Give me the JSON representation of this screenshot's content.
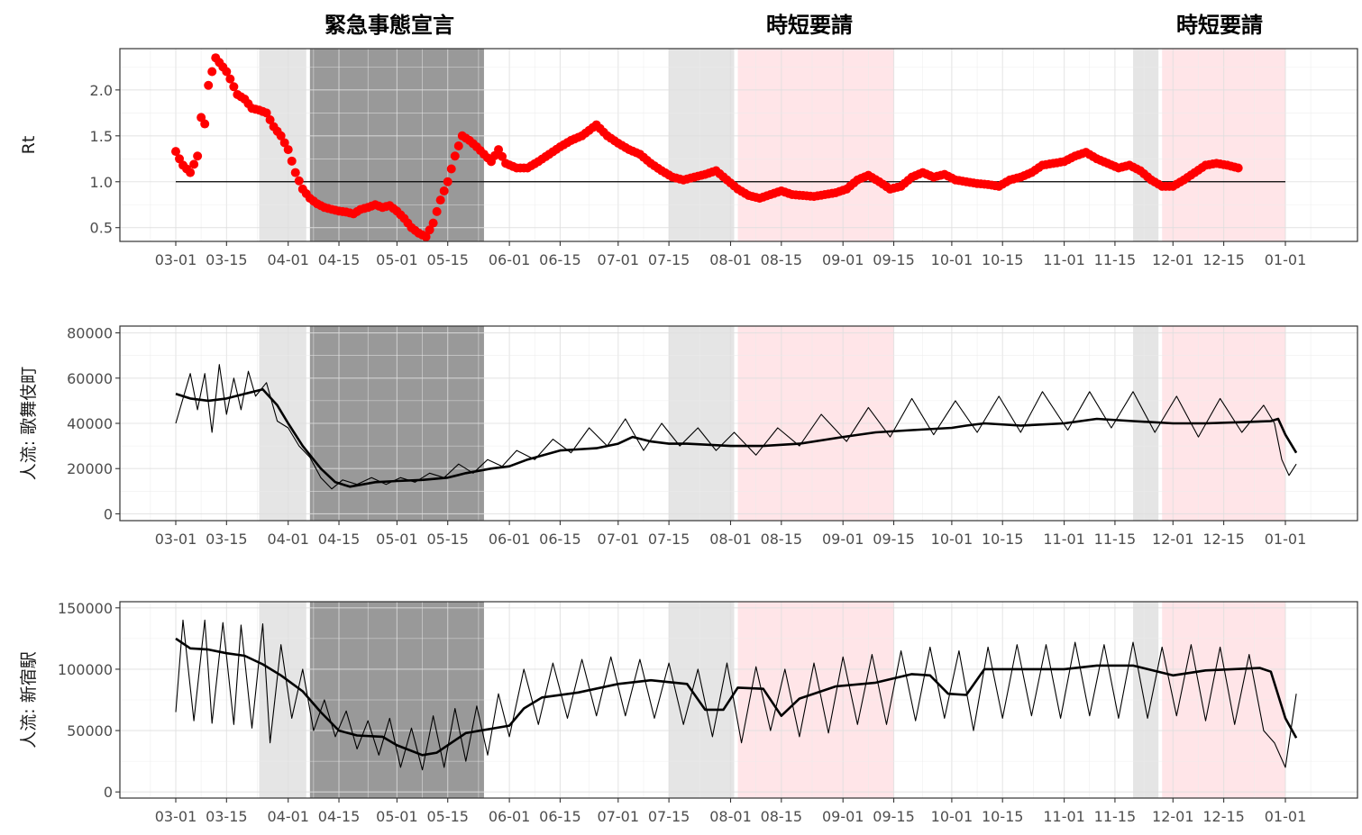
{
  "chart_data": [
    {
      "type": "scatter",
      "ylabel": "Rt",
      "ylim": [
        0.35,
        2.45
      ],
      "y_ticks": [
        0.5,
        1.0,
        1.5,
        2.0
      ],
      "y_tick_labels": [
        "0.5",
        "1.0",
        "1.5",
        "2.0"
      ],
      "x_tick_labels": [
        "03-01",
        "03-15",
        "04-01",
        "04-15",
        "05-01",
        "05-15",
        "06-01",
        "06-15",
        "07-01",
        "07-15",
        "08-01",
        "08-15",
        "09-01",
        "09-15",
        "10-01",
        "10-15",
        "11-01",
        "11-15",
        "12-01",
        "12-15",
        "01-01"
      ],
      "reference_line": 1.0,
      "point_color": "#ff0000",
      "series": [
        {
          "x": [
            "03-01",
            "03-02",
            "03-03",
            "03-05",
            "03-07",
            "03-08",
            "03-09",
            "03-10",
            "03-11",
            "03-12",
            "03-13",
            "03-14",
            "03-15",
            "03-16",
            "03-18",
            "03-20",
            "03-22",
            "03-24",
            "03-26",
            "03-28",
            "03-30",
            "04-01",
            "04-03",
            "04-05",
            "04-07",
            "04-09",
            "04-11",
            "04-13",
            "04-15",
            "04-17",
            "04-19",
            "04-21",
            "04-23",
            "04-25",
            "04-27",
            "04-29",
            "05-01",
            "05-03",
            "05-05",
            "05-07",
            "05-09",
            "05-11",
            "05-13",
            "05-15",
            "05-17",
            "05-19",
            "05-21",
            "05-23",
            "05-25",
            "05-27",
            "05-29",
            "05-31",
            "06-03",
            "06-06",
            "06-09",
            "06-12",
            "06-15",
            "06-18",
            "06-21",
            "06-25",
            "06-28",
            "07-01",
            "07-04",
            "07-07",
            "07-10",
            "07-13",
            "07-16",
            "07-19",
            "07-22",
            "07-25",
            "07-28",
            "07-31",
            "08-03",
            "08-06",
            "08-09",
            "08-12",
            "08-15",
            "08-18",
            "08-21",
            "08-24",
            "08-27",
            "08-30",
            "09-02",
            "09-05",
            "09-08",
            "09-11",
            "09-14",
            "09-17",
            "09-20",
            "09-23",
            "09-26",
            "09-29",
            "10-02",
            "10-05",
            "10-08",
            "10-11",
            "10-14",
            "10-17",
            "10-20",
            "10-23",
            "10-26",
            "10-29",
            "11-01",
            "11-04",
            "11-07",
            "11-10",
            "11-13",
            "11-16",
            "11-19",
            "11-22",
            "11-25",
            "11-28",
            "12-01",
            "12-04",
            "12-07",
            "12-10",
            "12-13",
            "12-16",
            "12-19"
          ],
          "y": [
            1.33,
            1.25,
            1.18,
            1.1,
            1.28,
            1.7,
            1.63,
            2.05,
            2.2,
            2.35,
            2.3,
            2.25,
            2.2,
            2.12,
            1.95,
            1.9,
            1.8,
            1.78,
            1.75,
            1.6,
            1.5,
            1.35,
            1.1,
            0.92,
            0.82,
            0.76,
            0.72,
            0.7,
            0.68,
            0.67,
            0.65,
            0.7,
            0.72,
            0.75,
            0.72,
            0.74,
            0.68,
            0.6,
            0.5,
            0.44,
            0.4,
            0.55,
            0.8,
            1.0,
            1.28,
            1.5,
            1.45,
            1.38,
            1.3,
            1.22,
            1.35,
            1.2,
            1.15,
            1.15,
            1.22,
            1.3,
            1.38,
            1.45,
            1.5,
            1.62,
            1.5,
            1.42,
            1.35,
            1.3,
            1.2,
            1.12,
            1.05,
            1.02,
            1.05,
            1.08,
            1.12,
            1.02,
            0.92,
            0.85,
            0.82,
            0.86,
            0.9,
            0.86,
            0.85,
            0.84,
            0.86,
            0.88,
            0.92,
            1.02,
            1.07,
            1.0,
            0.92,
            0.95,
            1.05,
            1.1,
            1.05,
            1.08,
            1.02,
            1.0,
            0.98,
            0.97,
            0.95,
            1.02,
            1.05,
            1.1,
            1.18,
            1.2,
            1.22,
            1.28,
            1.32,
            1.25,
            1.2,
            1.15,
            1.18,
            1.12,
            1.02,
            0.95,
            0.95,
            1.02,
            1.1,
            1.18,
            1.2,
            1.18,
            1.15
          ]
        }
      ]
    },
    {
      "type": "line",
      "ylabel": "人流: 歌舞伎町",
      "ylim": [
        -3000,
        83000
      ],
      "y_ticks": [
        0,
        20000,
        40000,
        60000,
        80000
      ],
      "y_tick_labels": [
        "0",
        "20000",
        "40000",
        "60000",
        "80000"
      ],
      "x_tick_labels": [
        "03-01",
        "03-15",
        "04-01",
        "04-15",
        "05-01",
        "05-15",
        "06-01",
        "06-15",
        "07-01",
        "07-15",
        "08-01",
        "08-15",
        "09-01",
        "09-15",
        "10-01",
        "10-15",
        "11-01",
        "11-15",
        "12-01",
        "12-15",
        "01-01"
      ],
      "series": [
        {
          "kind": "smoothed",
          "x": [
            "03-01",
            "03-05",
            "03-10",
            "03-15",
            "03-20",
            "03-25",
            "03-29",
            "04-01",
            "04-05",
            "04-10",
            "04-14",
            "04-18",
            "04-25",
            "05-01",
            "05-08",
            "05-15",
            "05-20",
            "05-27",
            "06-01",
            "06-06",
            "06-15",
            "06-25",
            "07-01",
            "07-05",
            "07-10",
            "07-15",
            "07-20",
            "08-01",
            "08-10",
            "08-20",
            "09-01",
            "09-10",
            "09-20",
            "10-01",
            "10-05",
            "10-10",
            "10-20",
            "11-01",
            "11-10",
            "11-20",
            "12-01",
            "12-10",
            "12-20",
            "12-28",
            "12-30",
            "01-01",
            "01-04"
          ],
          "y": [
            53000,
            51000,
            50000,
            51000,
            53000,
            55000,
            48000,
            40000,
            30000,
            20000,
            14000,
            12000,
            14000,
            14500,
            15000,
            16000,
            18000,
            20000,
            21000,
            24000,
            28000,
            29000,
            31000,
            34000,
            32000,
            31000,
            31000,
            30000,
            30000,
            31000,
            34000,
            36000,
            37000,
            38000,
            39000,
            40000,
            39000,
            40000,
            42000,
            41000,
            40000,
            40000,
            40500,
            41000,
            42000,
            35000,
            27000
          ]
        },
        {
          "kind": "daily",
          "x": [
            "03-01",
            "03-05",
            "03-07",
            "03-09",
            "03-11",
            "03-13",
            "03-15",
            "03-17",
            "03-19",
            "03-21",
            "03-23",
            "03-26",
            "03-29",
            "04-01",
            "04-04",
            "04-07",
            "04-10",
            "04-13",
            "04-16",
            "04-20",
            "04-24",
            "04-28",
            "05-02",
            "05-06",
            "05-10",
            "05-14",
            "05-18",
            "05-22",
            "05-26",
            "05-30",
            "06-03",
            "06-08",
            "06-13",
            "06-18",
            "06-23",
            "06-28",
            "07-03",
            "07-08",
            "07-13",
            "07-18",
            "07-23",
            "07-28",
            "08-02",
            "08-08",
            "08-14",
            "08-20",
            "08-26",
            "09-02",
            "09-08",
            "09-14",
            "09-20",
            "09-26",
            "10-02",
            "10-08",
            "10-14",
            "10-20",
            "10-26",
            "11-02",
            "11-08",
            "11-14",
            "11-20",
            "11-26",
            "12-02",
            "12-08",
            "12-14",
            "12-20",
            "12-26",
            "12-29",
            "12-31",
            "01-02",
            "01-04"
          ],
          "y": [
            40000,
            62000,
            46000,
            62000,
            36000,
            66000,
            44000,
            60000,
            46000,
            63000,
            52000,
            58000,
            41000,
            38000,
            30000,
            25000,
            16000,
            11000,
            15000,
            13000,
            16000,
            13000,
            16000,
            14000,
            18000,
            16000,
            22000,
            18000,
            24000,
            21000,
            28000,
            24000,
            33000,
            27000,
            38000,
            30000,
            42000,
            28000,
            40000,
            30000,
            38000,
            28000,
            36000,
            26000,
            38000,
            30000,
            44000,
            32000,
            47000,
            34000,
            51000,
            35000,
            50000,
            36000,
            52000,
            36000,
            54000,
            37000,
            54000,
            38000,
            54000,
            36000,
            52000,
            34000,
            51000,
            36000,
            48000,
            40000,
            24000,
            17000,
            22000
          ]
        }
      ]
    },
    {
      "type": "line",
      "ylabel": "人流: 新宿駅",
      "ylim": [
        -5000,
        155000
      ],
      "y_ticks": [
        0,
        50000,
        100000,
        150000
      ],
      "y_tick_labels": [
        "0",
        "50000",
        "100000",
        "150000"
      ],
      "x_tick_labels": [
        "03-01",
        "03-15",
        "04-01",
        "04-15",
        "05-01",
        "05-15",
        "06-01",
        "06-15",
        "07-01",
        "07-15",
        "08-01",
        "08-15",
        "09-01",
        "09-15",
        "10-01",
        "10-15",
        "11-01",
        "11-15",
        "12-01",
        "12-15",
        "01-01"
      ],
      "series": [
        {
          "kind": "smoothed",
          "x": [
            "03-01",
            "03-05",
            "03-10",
            "03-15",
            "03-20",
            "03-25",
            "03-30",
            "04-05",
            "04-10",
            "04-15",
            "04-20",
            "04-27",
            "05-01",
            "05-08",
            "05-12",
            "05-20",
            "06-01",
            "06-05",
            "06-10",
            "06-20",
            "07-01",
            "07-10",
            "07-20",
            "07-25",
            "07-30",
            "08-03",
            "08-10",
            "08-15",
            "08-20",
            "08-30",
            "09-10",
            "09-20",
            "09-25",
            "09-30",
            "10-05",
            "10-10",
            "10-20",
            "11-01",
            "11-10",
            "11-20",
            "12-01",
            "12-10",
            "12-25",
            "12-28",
            "01-01",
            "01-04"
          ],
          "y": [
            125000,
            117000,
            116000,
            113000,
            111000,
            104000,
            95000,
            82000,
            65000,
            50000,
            46000,
            45000,
            38000,
            30000,
            32000,
            48000,
            54000,
            68000,
            77000,
            81000,
            88000,
            91000,
            88000,
            67000,
            67000,
            85000,
            84000,
            62000,
            76000,
            86000,
            89000,
            96000,
            95000,
            80000,
            79000,
            100000,
            100000,
            100000,
            103000,
            103000,
            95000,
            99000,
            101000,
            98000,
            60000,
            44000
          ]
        },
        {
          "kind": "daily",
          "x": [
            "03-01",
            "03-03",
            "03-06",
            "03-09",
            "03-11",
            "03-14",
            "03-17",
            "03-19",
            "03-22",
            "03-25",
            "03-27",
            "03-30",
            "04-02",
            "04-05",
            "04-08",
            "04-11",
            "04-14",
            "04-17",
            "04-20",
            "04-23",
            "04-26",
            "04-29",
            "05-02",
            "05-05",
            "05-08",
            "05-11",
            "05-14",
            "05-17",
            "05-20",
            "05-23",
            "05-26",
            "05-29",
            "06-01",
            "06-05",
            "06-09",
            "06-13",
            "06-17",
            "06-21",
            "06-25",
            "06-29",
            "07-03",
            "07-07",
            "07-11",
            "07-15",
            "07-19",
            "07-23",
            "07-27",
            "07-31",
            "08-04",
            "08-08",
            "08-12",
            "08-16",
            "08-20",
            "08-24",
            "08-28",
            "09-01",
            "09-05",
            "09-09",
            "09-13",
            "09-17",
            "09-21",
            "09-25",
            "09-29",
            "10-03",
            "10-07",
            "10-11",
            "10-15",
            "10-19",
            "10-23",
            "10-27",
            "10-31",
            "11-04",
            "11-08",
            "11-12",
            "11-16",
            "11-20",
            "11-24",
            "11-28",
            "12-02",
            "12-06",
            "12-10",
            "12-14",
            "12-18",
            "12-22",
            "12-26",
            "12-29",
            "01-01",
            "01-04"
          ],
          "y": [
            65000,
            140000,
            58000,
            140000,
            56000,
            138000,
            55000,
            136000,
            52000,
            137000,
            40000,
            120000,
            60000,
            100000,
            50000,
            75000,
            45000,
            66000,
            35000,
            58000,
            30000,
            60000,
            20000,
            52000,
            18000,
            62000,
            20000,
            68000,
            25000,
            70000,
            30000,
            80000,
            45000,
            100000,
            55000,
            105000,
            60000,
            108000,
            62000,
            110000,
            62000,
            108000,
            60000,
            105000,
            55000,
            100000,
            45000,
            105000,
            40000,
            102000,
            50000,
            100000,
            45000,
            105000,
            48000,
            110000,
            55000,
            112000,
            55000,
            115000,
            58000,
            118000,
            60000,
            115000,
            50000,
            118000,
            60000,
            120000,
            62000,
            120000,
            60000,
            122000,
            62000,
            120000,
            60000,
            122000,
            60000,
            118000,
            62000,
            120000,
            58000,
            118000,
            55000,
            112000,
            50000,
            40000,
            20000,
            80000
          ]
        }
      ]
    }
  ],
  "shaded_periods": [
    {
      "start": "03-24",
      "end": "04-06",
      "color": "#e5e5e5"
    },
    {
      "start": "04-07",
      "end": "05-25",
      "color": "#999999"
    },
    {
      "start": "07-15",
      "end": "08-02",
      "color": "#e5e5e5"
    },
    {
      "start": "08-03",
      "end": "09-15",
      "color": "#ffe5e8"
    },
    {
      "start": "11-20",
      "end": "11-27",
      "color": "#e5e5e5"
    },
    {
      "start": "11-28",
      "end": "01-01",
      "color": "#ffe5e8"
    }
  ],
  "annotations": [
    "緊急事態宣言",
    "時短要請",
    "時短要請"
  ]
}
